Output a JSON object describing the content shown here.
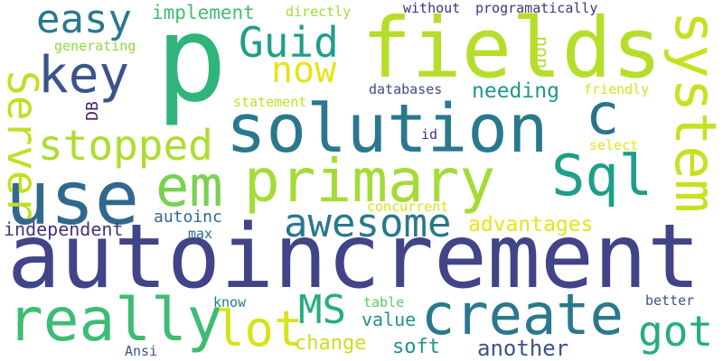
{
  "words": [
    {
      "text": "autoincrement",
      "color": "#414487"
    },
    {
      "text": "p",
      "color": "#2fb47c"
    },
    {
      "text": "fields",
      "color": "#b5de2b"
    },
    {
      "text": "solution",
      "color": "#2a788e"
    },
    {
      "text": "use",
      "color": "#31688e"
    },
    {
      "text": "primary",
      "color": "#a5db36"
    },
    {
      "text": "create",
      "color": "#2a788e"
    },
    {
      "text": "really",
      "color": "#3fbc73"
    },
    {
      "text": "system",
      "color": "#c8e020"
    },
    {
      "text": "key",
      "color": "#3b528b"
    },
    {
      "text": "Sql",
      "color": "#1f9e89"
    },
    {
      "text": "Server",
      "color": "#c2df23"
    },
    {
      "text": "em",
      "color": "#7ad151"
    },
    {
      "text": "stopped",
      "color": "#addc30"
    },
    {
      "text": "c",
      "color": "#2c728e"
    },
    {
      "text": "awesome",
      "color": "#2a788e"
    },
    {
      "text": "Guid",
      "color": "#1f9e89"
    },
    {
      "text": "easy",
      "color": "#2a788e"
    },
    {
      "text": "now",
      "color": "#e5e419"
    },
    {
      "text": "lot",
      "color": "#d8e219"
    },
    {
      "text": "MS",
      "color": "#26ad81"
    },
    {
      "text": "got",
      "color": "#26ad81"
    },
    {
      "text": "implement",
      "color": "#3fbc73"
    },
    {
      "text": "needing",
      "color": "#1f958b"
    },
    {
      "text": "advantages",
      "color": "#e5e419"
    },
    {
      "text": "independent",
      "color": "#46327e"
    },
    {
      "text": "autoinc",
      "color": "#31688e"
    },
    {
      "text": "change",
      "color": "#c8e020"
    },
    {
      "text": "another",
      "color": "#3b528b"
    },
    {
      "text": "value",
      "color": "#21918c"
    },
    {
      "text": "soft",
      "color": "#21918c"
    },
    {
      "text": "directly",
      "color": "#a5db36"
    },
    {
      "text": "without",
      "color": "#472d7b"
    },
    {
      "text": "programatically",
      "color": "#46327e"
    },
    {
      "text": "generating",
      "color": "#8fd744"
    },
    {
      "text": "non",
      "color": "#b5de2b"
    },
    {
      "text": "databases",
      "color": "#3e4989"
    },
    {
      "text": "friendly",
      "color": "#d8e219"
    },
    {
      "text": "statement",
      "color": "#c2df23"
    },
    {
      "text": "DB",
      "color": "#481f70"
    },
    {
      "text": "id",
      "color": "#46327e"
    },
    {
      "text": "select",
      "color": "#e5e419"
    },
    {
      "text": "concurrent",
      "color": "#d8e219"
    },
    {
      "text": "max",
      "color": "#31688e"
    },
    {
      "text": "know",
      "color": "#2a788e"
    },
    {
      "text": "table",
      "color": "#5ec962"
    },
    {
      "text": "better",
      "color": "#3b528b"
    },
    {
      "text": "Ansi",
      "color": "#3b528b"
    }
  ]
}
